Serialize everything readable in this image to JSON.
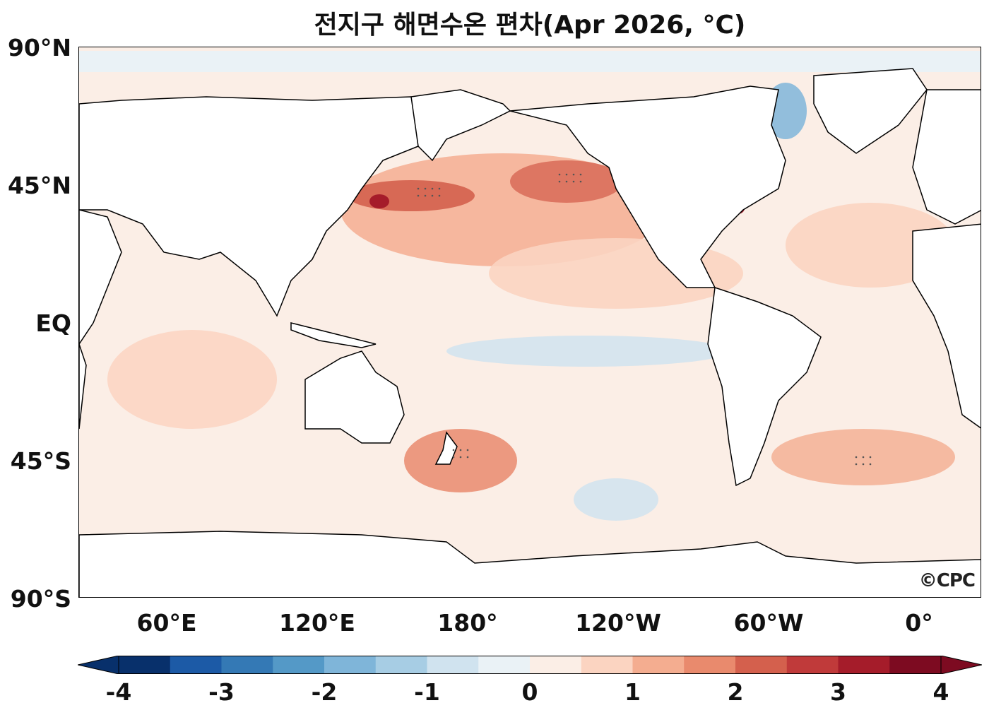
{
  "title": "전지구 해면수온 편차(Apr 2026, °C)",
  "y_ticks": [
    "90°N",
    "45°N",
    "EQ",
    "45°S",
    "90°S"
  ],
  "x_ticks": [
    "60°E",
    "120°E",
    "180°",
    "120°W",
    "60°W",
    "0°"
  ],
  "colorbar": {
    "labels": [
      "-4",
      "-3",
      "-2",
      "-1",
      "0",
      "1",
      "2",
      "3",
      "4"
    ],
    "min": -4,
    "max": 4,
    "step": 0.5,
    "colors": [
      "#08306b",
      "#1c5aa6",
      "#3479b5",
      "#5499c7",
      "#7fb5d9",
      "#a7cde4",
      "#d0e3ef",
      "#eaf2f6",
      "#fbeee6",
      "#fbd4c1",
      "#f4ad90",
      "#e98a6d",
      "#d4604d",
      "#c03a3a",
      "#a51c2a",
      "#7d0b21"
    ]
  },
  "logo": "©CPC"
}
